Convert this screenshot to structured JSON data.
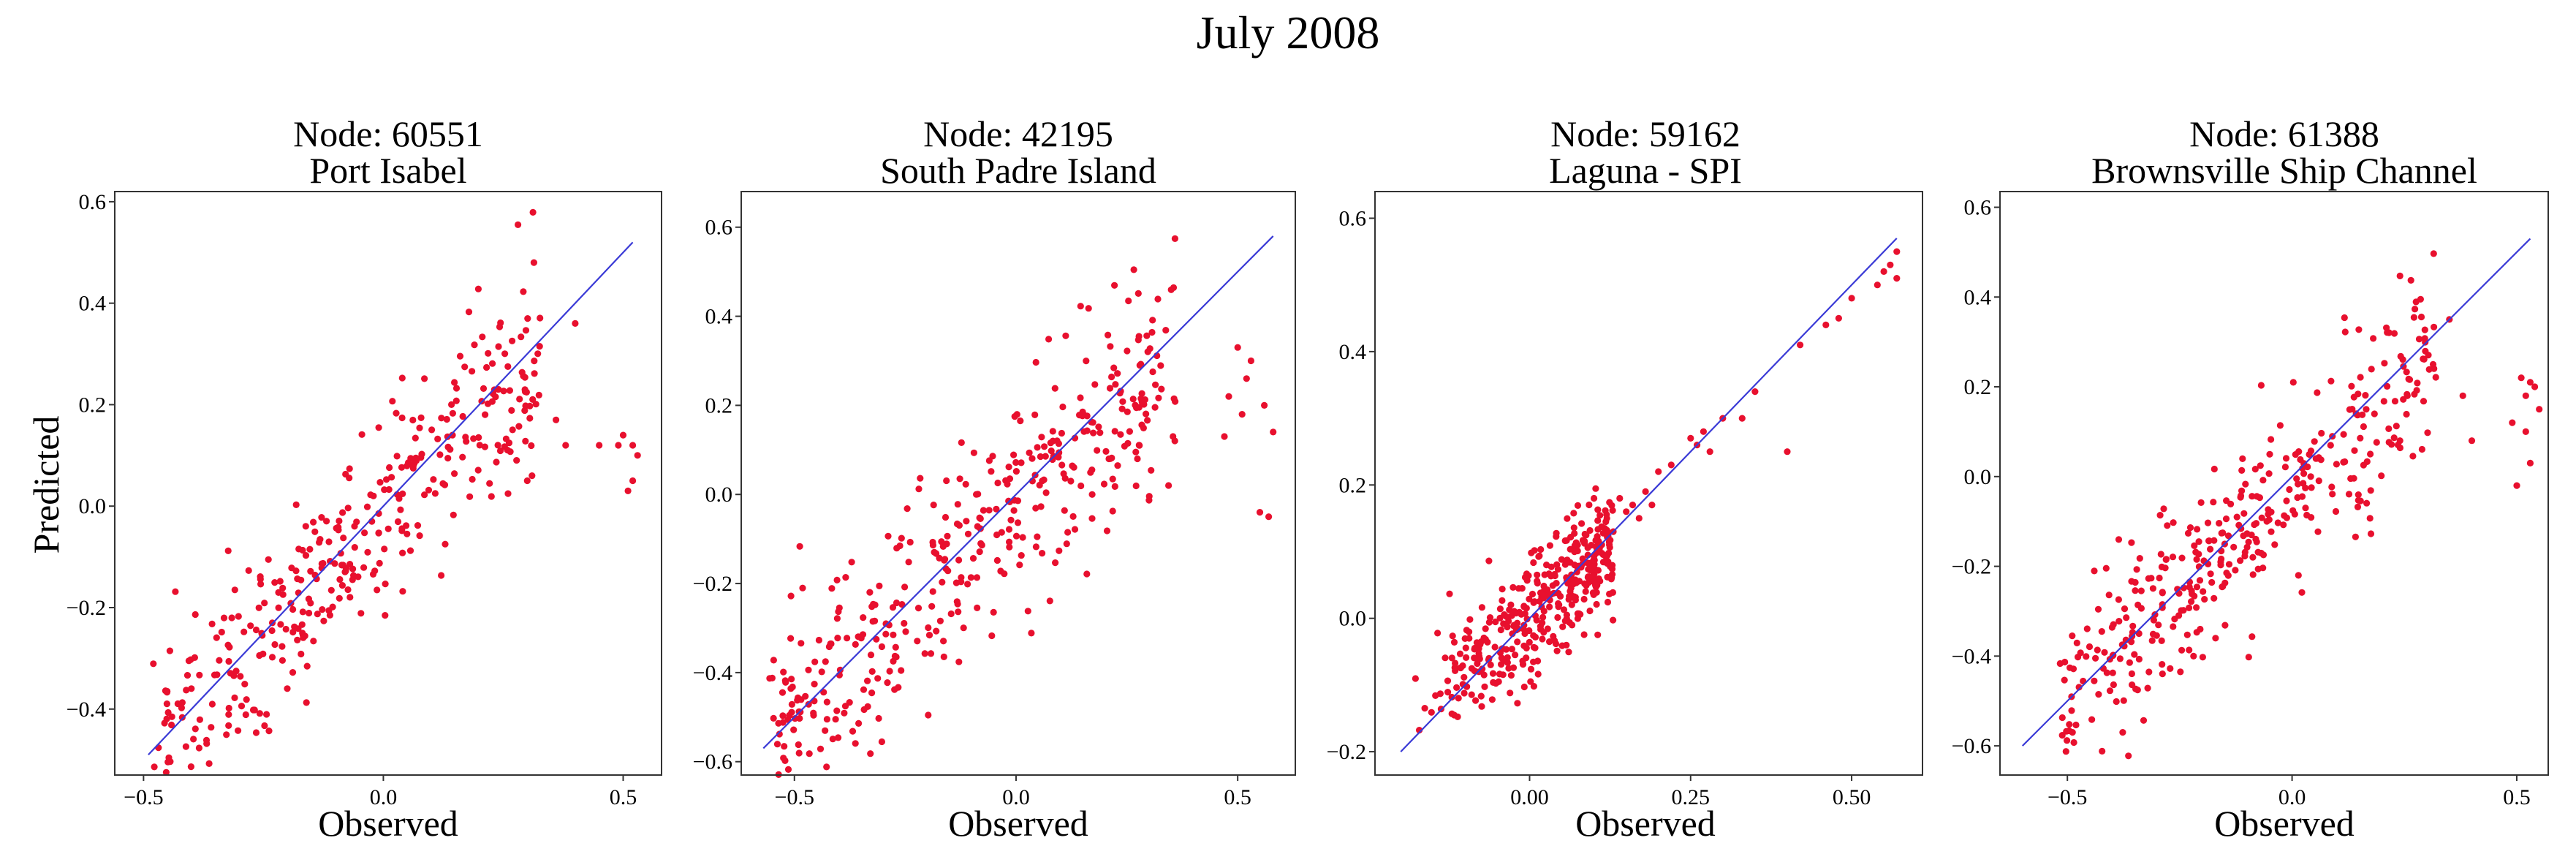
{
  "suptitle": "July 2008",
  "colors": {
    "points": "#e8102e",
    "line": "#3a3ad6",
    "axes": "#333333"
  },
  "chart_data": [
    {
      "type": "scatter",
      "title": [
        "Node: 60551",
        "Port Isabel"
      ],
      "xlabel": "Observed",
      "ylabel": "Predicted",
      "xlim": [
        -0.56,
        0.58
      ],
      "ylim": [
        -0.53,
        0.62
      ],
      "xticks": [
        -0.5,
        0.0,
        0.5
      ],
      "xtick_labels": [
        "−0.5",
        "0.0",
        "0.5"
      ],
      "yticks": [
        -0.4,
        -0.2,
        0.0,
        0.2,
        0.4,
        0.6
      ],
      "ytick_labels": [
        "−0.4",
        "−0.2",
        "0.0",
        "0.2",
        "0.4",
        "0.6"
      ],
      "fit_line": {
        "x": [
          -0.49,
          0.52
        ],
        "y": [
          -0.49,
          0.52
        ]
      },
      "cloud": {
        "n": 360,
        "xmin": -0.48,
        "xmax": 0.33,
        "slope": 1.0,
        "intercept": -0.01,
        "spread": 0.09,
        "hi_extra": 0.06,
        "seed": 11
      },
      "extra_points": [
        [
          0.52,
          0.05
        ],
        [
          0.51,
          0.03
        ],
        [
          0.52,
          0.12
        ],
        [
          0.5,
          0.14
        ],
        [
          0.53,
          0.1
        ],
        [
          0.49,
          0.12
        ],
        [
          0.45,
          0.12
        ],
        [
          0.38,
          0.12
        ],
        [
          0.4,
          0.36
        ],
        [
          0.31,
          0.06
        ],
        [
          0.3,
          0.05
        ],
        [
          0.36,
          0.17
        ]
      ]
    },
    {
      "type": "scatter",
      "title": [
        "Node: 42195",
        "South Padre Island"
      ],
      "xlabel": "Observed",
      "ylabel": "",
      "xlim": [
        -0.62,
        0.63
      ],
      "ylim": [
        -0.63,
        0.68
      ],
      "xticks": [
        -0.5,
        0.0,
        0.5
      ],
      "xtick_labels": [
        "−0.5",
        "0.0",
        "0.5"
      ],
      "yticks": [
        -0.6,
        -0.4,
        -0.2,
        0.0,
        0.2,
        0.4,
        0.6
      ],
      "ytick_labels": [
        "−0.6",
        "−0.4",
        "−0.2",
        "0.0",
        "0.2",
        "0.4",
        "0.6"
      ],
      "fit_line": {
        "x": [
          -0.57,
          0.58
        ],
        "y": [
          -0.57,
          0.58
        ]
      },
      "cloud": {
        "n": 400,
        "xmin": -0.56,
        "xmax": 0.36,
        "slope": 0.9,
        "intercept": -0.02,
        "spread": 0.12,
        "hi_extra": 0.0,
        "seed": 23
      },
      "extra_points": [
        [
          0.57,
          -0.05
        ],
        [
          0.55,
          -0.04
        ],
        [
          0.58,
          0.14
        ],
        [
          0.56,
          0.2
        ],
        [
          0.52,
          0.26
        ],
        [
          0.5,
          0.33
        ],
        [
          0.53,
          0.3
        ],
        [
          0.48,
          0.22
        ],
        [
          0.47,
          0.13
        ],
        [
          0.51,
          0.18
        ]
      ]
    },
    {
      "type": "scatter",
      "title": [
        "Node: 59162",
        "Laguna - SPI"
      ],
      "xlabel": "Observed",
      "ylabel": "",
      "xlim": [
        -0.24,
        0.61
      ],
      "ylim": [
        -0.235,
        0.64
      ],
      "xticks": [
        0.0,
        0.25,
        0.5
      ],
      "xtick_labels": [
        "0.00",
        "0.25",
        "0.50"
      ],
      "yticks": [
        -0.2,
        0.0,
        0.2,
        0.4,
        0.6
      ],
      "ytick_labels": [
        "−0.2",
        "0.0",
        "0.2",
        "0.4",
        "0.6"
      ],
      "fit_line": {
        "x": [
          -0.2,
          0.57
        ],
        "y": [
          -0.2,
          0.57
        ]
      },
      "cloud": {
        "n": 380,
        "xmin": -0.19,
        "xmax": 0.13,
        "slope": 0.8,
        "intercept": 0.0,
        "spread": 0.045,
        "hi_extra": 0.0,
        "seed": 37
      },
      "extra_points": [
        [
          0.57,
          0.55
        ],
        [
          0.56,
          0.53
        ],
        [
          0.55,
          0.52
        ],
        [
          0.57,
          0.51
        ],
        [
          0.54,
          0.5
        ],
        [
          0.5,
          0.48
        ],
        [
          0.48,
          0.45
        ],
        [
          0.46,
          0.44
        ],
        [
          0.42,
          0.41
        ],
        [
          0.4,
          0.25
        ],
        [
          0.35,
          0.34
        ],
        [
          0.3,
          0.3
        ],
        [
          0.27,
          0.28
        ],
        [
          0.25,
          0.27
        ],
        [
          0.26,
          0.26
        ],
        [
          0.22,
          0.23
        ],
        [
          0.2,
          0.22
        ],
        [
          0.18,
          0.19
        ],
        [
          0.16,
          0.17
        ],
        [
          0.15,
          0.16
        ],
        [
          0.17,
          0.15
        ],
        [
          0.14,
          0.18
        ],
        [
          0.19,
          0.17
        ],
        [
          0.13,
          0.13
        ],
        [
          0.12,
          0.15
        ],
        [
          0.1,
          0.18
        ],
        [
          0.28,
          0.25
        ],
        [
          0.33,
          0.3
        ]
      ]
    },
    {
      "type": "scatter",
      "title": [
        "Node: 61388",
        "Brownsville Ship Channel"
      ],
      "xlabel": "Observed",
      "ylabel": "",
      "xlim": [
        -0.65,
        0.57
      ],
      "ylim": [
        -0.665,
        0.635
      ],
      "xticks": [
        -0.5,
        0.0,
        0.5
      ],
      "xtick_labels": [
        "−0.5",
        "0.0",
        "0.5"
      ],
      "yticks": [
        -0.6,
        -0.4,
        -0.2,
        0.0,
        0.2,
        0.4,
        0.6
      ],
      "ytick_labels": [
        "−0.6",
        "−0.4",
        "−0.2",
        "0.0",
        "0.2",
        "0.4",
        "0.6"
      ],
      "fit_line": {
        "x": [
          -0.6,
          0.53
        ],
        "y": [
          -0.6,
          0.53
        ]
      },
      "cloud": {
        "n": 380,
        "xmin": -0.52,
        "xmax": 0.32,
        "slope": 0.9,
        "intercept": -0.03,
        "spread": 0.1,
        "hi_extra": 0.05,
        "seed": 51
      },
      "extra_points": [
        [
          0.52,
          0.18
        ],
        [
          0.53,
          0.21
        ],
        [
          0.51,
          0.22
        ],
        [
          0.54,
          0.2
        ],
        [
          0.55,
          0.15
        ],
        [
          0.5,
          -0.02
        ],
        [
          0.49,
          0.12
        ],
        [
          0.53,
          0.03
        ],
        [
          0.52,
          0.1
        ],
        [
          0.4,
          0.08
        ],
        [
          0.38,
          0.18
        ],
        [
          0.35,
          0.35
        ]
      ]
    }
  ]
}
